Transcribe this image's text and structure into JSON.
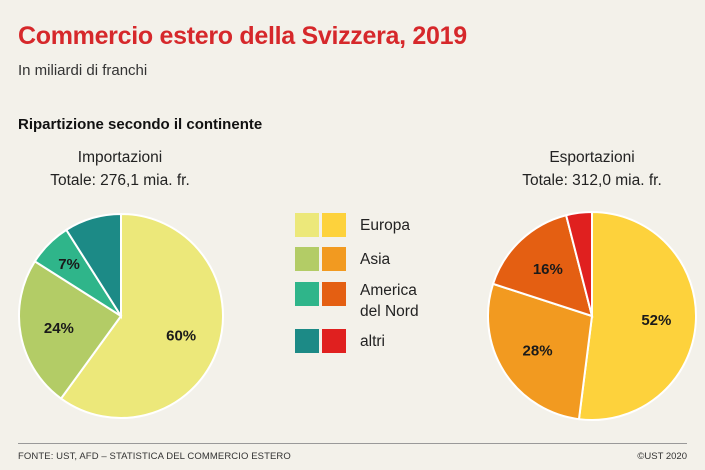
{
  "header": {
    "title": "Commercio estero della Svizzera, 2019",
    "subtitle": "In miliardi di franchi",
    "section": "Ripartizione secondo il continente"
  },
  "legend": {
    "items": [
      {
        "label": "Europa",
        "import_color": "#ece87a",
        "export_color": "#fdd23c"
      },
      {
        "label": "Asia",
        "import_color": "#b3cc66",
        "export_color": "#f29a20"
      },
      {
        "label": "America del Nord",
        "import_color": "#2fb58a",
        "export_color": "#e45f12"
      },
      {
        "label": "altri",
        "import_color": "#1c8a86",
        "export_color": "#e0201f"
      }
    ]
  },
  "chart_data": [
    {
      "type": "pie",
      "title": "Importazioni",
      "total_label": "Totale: 276,1 mia. fr.",
      "categories": [
        "Europa",
        "Asia",
        "America del Nord",
        "altri"
      ],
      "values": [
        60,
        24,
        7,
        9
      ],
      "data_labels": [
        "60%",
        "24%",
        "7%",
        ""
      ],
      "colors": [
        "#ece87a",
        "#b3cc66",
        "#2fb58a",
        "#1c8a86"
      ]
    },
    {
      "type": "pie",
      "title": "Esportazioni",
      "total_label": "Totale: 312,0 mia. fr.",
      "categories": [
        "Europa",
        "Asia",
        "America del Nord",
        "altri"
      ],
      "values": [
        52,
        28,
        16,
        4
      ],
      "data_labels": [
        "52%",
        "28%",
        "16%",
        ""
      ],
      "colors": [
        "#fdd23c",
        "#f29a20",
        "#e45f12",
        "#e0201f"
      ]
    }
  ],
  "footer": {
    "source": "FONTE: UST, AFD – STATISTICA DEL COMMERCIO ESTERO",
    "copyright": "©UST 2020"
  }
}
